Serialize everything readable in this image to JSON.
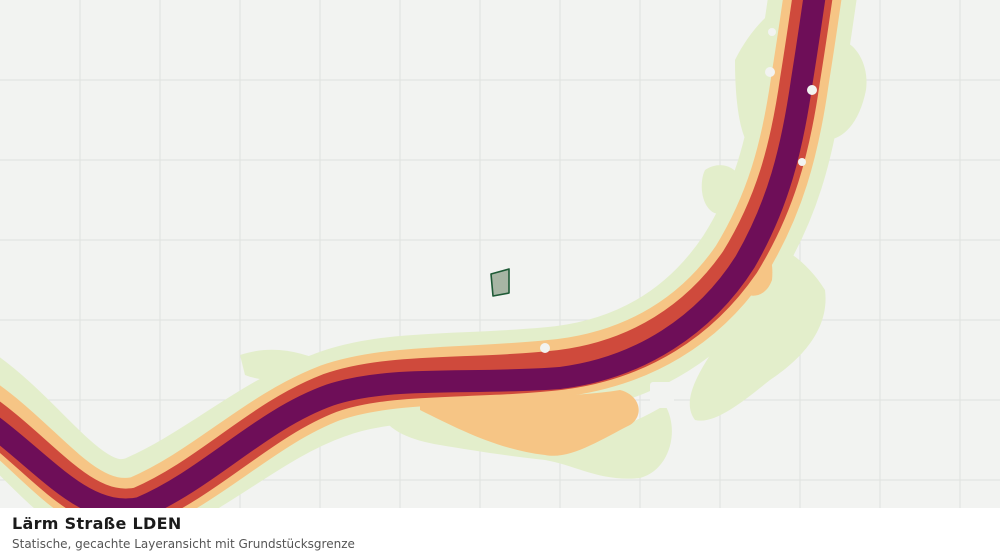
{
  "map": {
    "layer_title": "Lärm Straße LDEN",
    "layer_subtitle": "Statische, gecachte Layeransicht mit Grundstücksgrenze",
    "colors": {
      "background": "#f2f3f1",
      "grid": "#dfe1de",
      "noise_band_1": "#e3eecb",
      "noise_band_2": "#f6c585",
      "noise_band_3": "#cf4a3c",
      "noise_band_4": "#6e0e58",
      "parcel_fill": "#a7b5a4",
      "parcel_stroke": "#1e5a36"
    },
    "noise_bands": [
      "band-1",
      "band-2",
      "band-3",
      "band-4"
    ],
    "parcel": {
      "name": "parcel-boundary"
    }
  }
}
